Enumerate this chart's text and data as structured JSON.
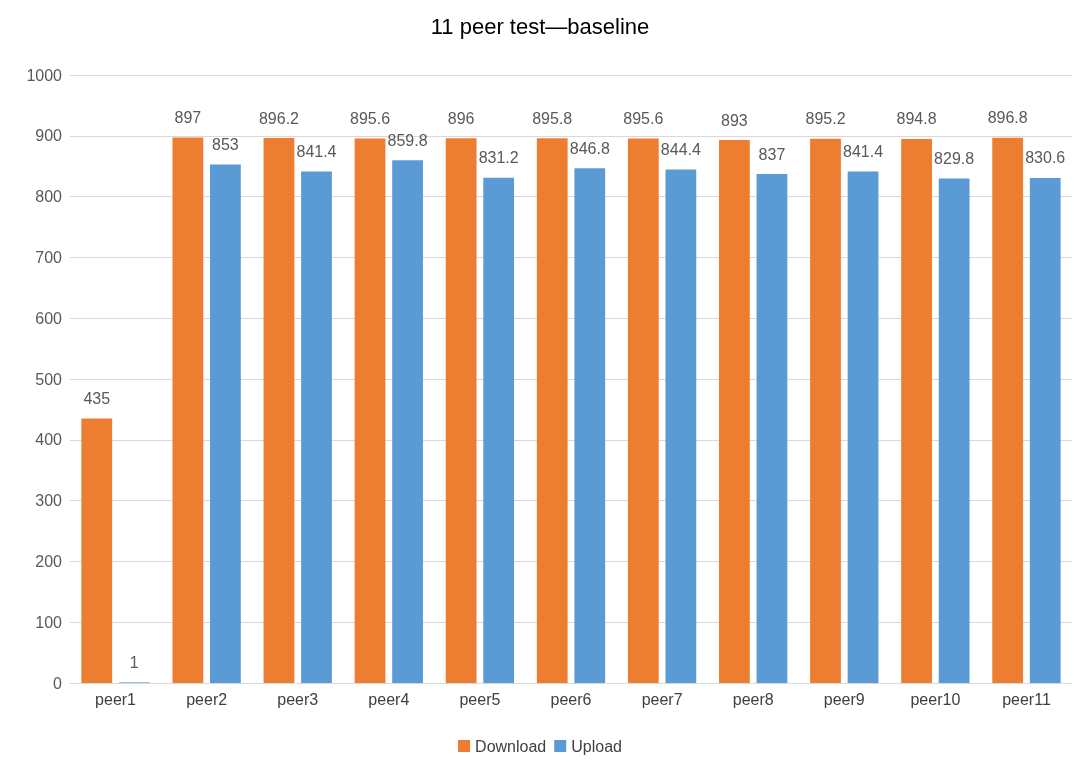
{
  "chart_data": {
    "type": "bar",
    "title": "11 peer test—baseline",
    "categories": [
      "peer1",
      "peer2",
      "peer3",
      "peer4",
      "peer5",
      "peer6",
      "peer7",
      "peer8",
      "peer9",
      "peer10",
      "peer11"
    ],
    "series": [
      {
        "name": "Download",
        "color": "#ed7d31",
        "values": [
          435,
          897,
          896.2,
          895.6,
          896,
          895.8,
          895.6,
          893,
          895.2,
          894.8,
          896.8
        ]
      },
      {
        "name": "Upload",
        "color": "#5b9bd5",
        "values": [
          1,
          853,
          841.4,
          859.8,
          831.2,
          846.8,
          844.4,
          837,
          841.4,
          829.8,
          830.6
        ]
      }
    ],
    "ylim": [
      0,
      1000
    ],
    "yticks": [
      0,
      100,
      200,
      300,
      400,
      500,
      600,
      700,
      800,
      900,
      1000
    ],
    "grid": "y",
    "legend": "bottom",
    "data_labels": true
  }
}
